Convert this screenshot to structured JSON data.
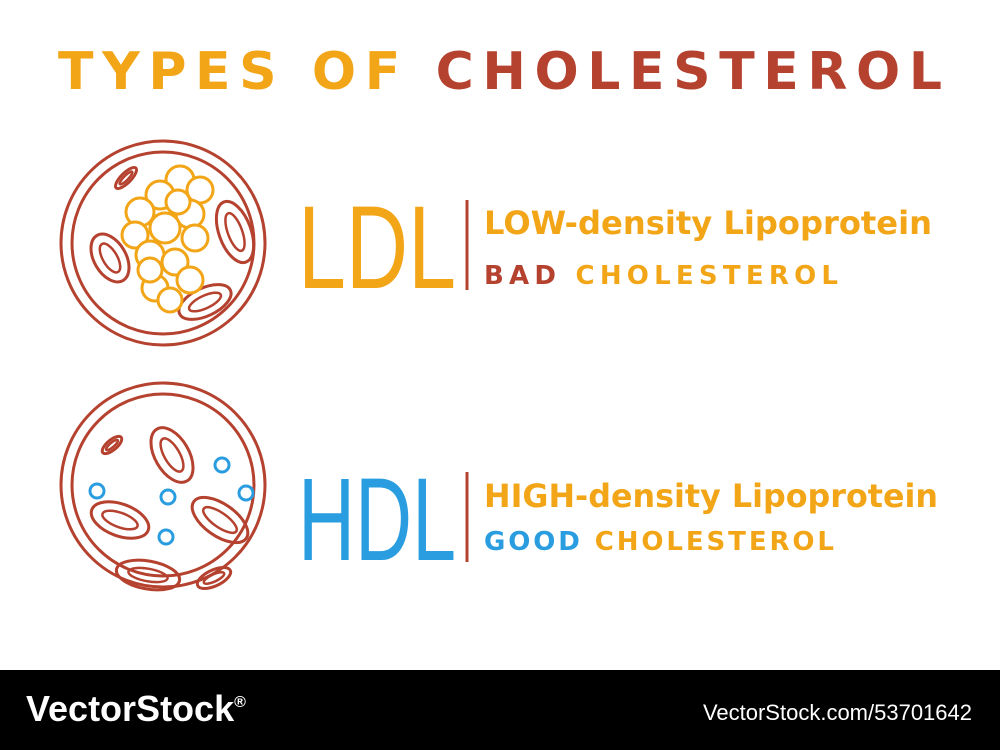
{
  "title": {
    "part1": "TYPES OF",
    "part2": "CHOLESTEROL"
  },
  "ldl": {
    "acronym": "LDL",
    "full_name": "LOW-density Lipoprotein",
    "label_word": "BAD",
    "label_rest": "CHOLESTEROL"
  },
  "hdl": {
    "acronym": "HDL",
    "full_name": "HIGH-density Lipoprotein",
    "label_word": "GOOD",
    "label_rest": "CHOLESTEROL"
  },
  "footer": {
    "brand": "VectorStock",
    "mark": "®",
    "url": "VectorStock.com/53701642"
  }
}
